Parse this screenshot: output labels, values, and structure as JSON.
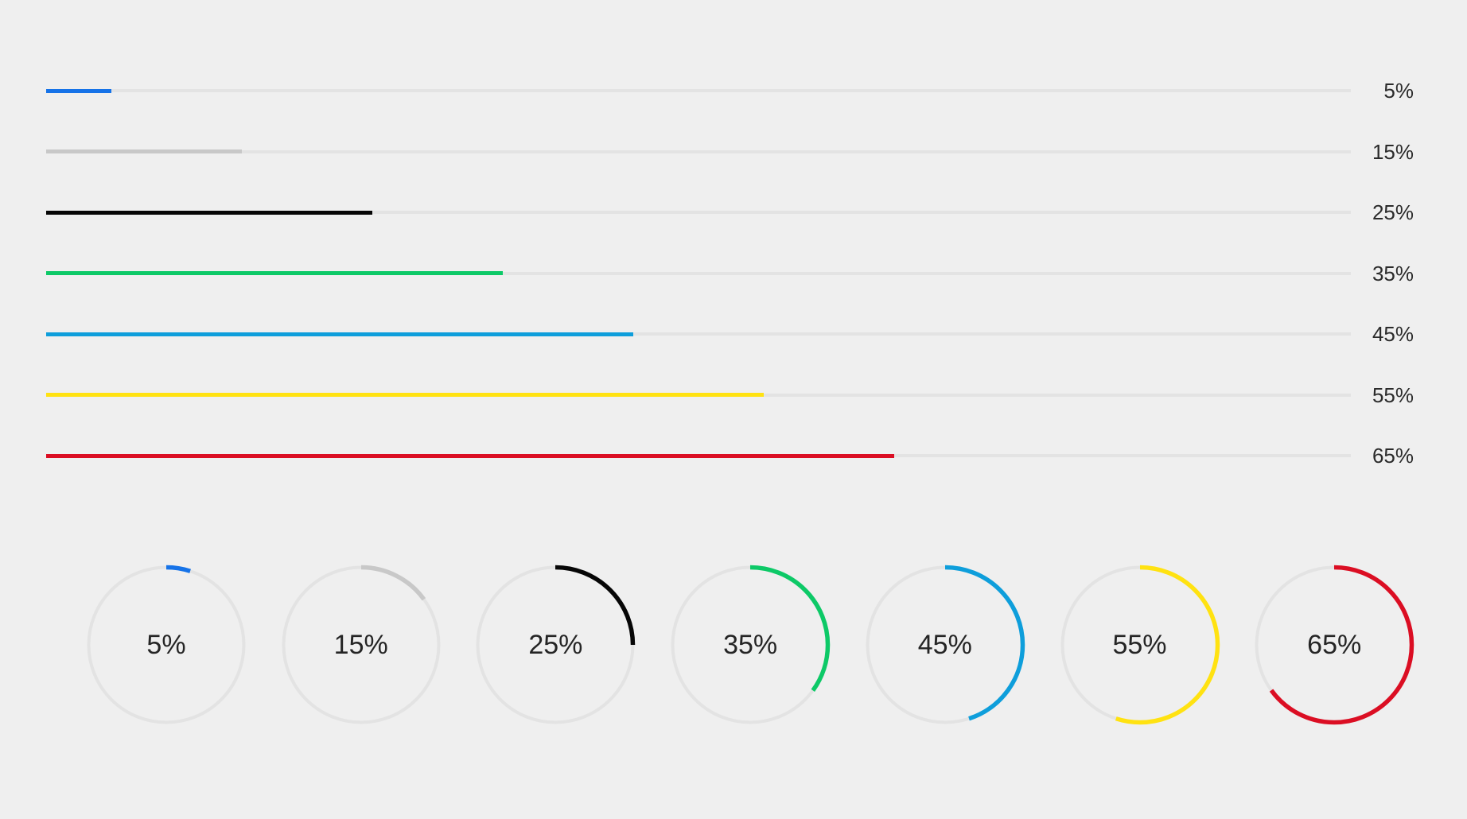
{
  "colors": {
    "background": "#efefef",
    "track": "#e3e3e3",
    "label_text": "#2b2b2b"
  },
  "progress": {
    "items": [
      {
        "label": "5%",
        "percent": 5,
        "color": "#1673e8"
      },
      {
        "label": "15%",
        "percent": 15,
        "color": "#c8c8c8"
      },
      {
        "label": "25%",
        "percent": 25,
        "color": "#060606"
      },
      {
        "label": "35%",
        "percent": 35,
        "color": "#0dc967"
      },
      {
        "label": "45%",
        "percent": 45,
        "color": "#0e9edb"
      },
      {
        "label": "55%",
        "percent": 55,
        "color": "#ffe211"
      },
      {
        "label": "65%",
        "percent": 65,
        "color": "#db0e23"
      }
    ]
  },
  "chart_data": {
    "type": "bar",
    "categories": [
      "5%",
      "15%",
      "25%",
      "35%",
      "45%",
      "55%",
      "65%"
    ],
    "values": [
      5,
      15,
      25,
      35,
      45,
      55,
      65
    ],
    "title": "",
    "xlabel": "",
    "ylabel": "",
    "ylim": [
      0,
      100
    ],
    "legend": "none",
    "grid": false
  }
}
